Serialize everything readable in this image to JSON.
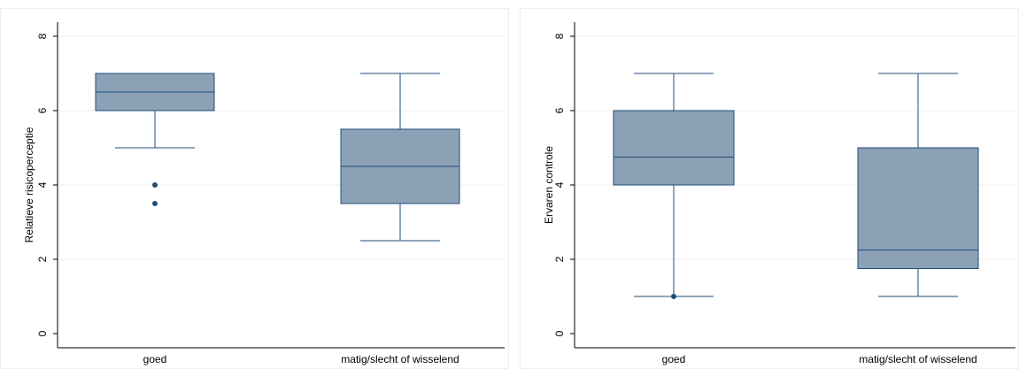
{
  "colors": {
    "box_fill": "#8ca1b6",
    "box_stroke": "#1f4e79",
    "outlier": "#1f4e79",
    "grid": "#eeeeee",
    "axis": "#000000",
    "panel_border": "#eeeeee"
  },
  "chart_data": [
    {
      "type": "boxplot",
      "title": "",
      "xlabel": "",
      "ylabel": "Relatieve risicoperceptie",
      "ylim": [
        0,
        8
      ],
      "yticks": [
        "0",
        "2",
        "4",
        "6",
        "8"
      ],
      "grid": true,
      "categories": [
        "goed",
        "matig/slecht of wisselend"
      ],
      "boxes": [
        {
          "whisker_low": 5,
          "q1": 6,
          "median": 6.5,
          "q3": 7,
          "whisker_high": 7,
          "outliers": [
            4,
            3.5
          ]
        },
        {
          "whisker_low": 2.5,
          "q1": 3.5,
          "median": 4.5,
          "q3": 5.5,
          "whisker_high": 7,
          "outliers": []
        }
      ]
    },
    {
      "type": "boxplot",
      "title": "",
      "xlabel": "",
      "ylabel": "Ervaren controle",
      "ylim": [
        0,
        8
      ],
      "yticks": [
        "0",
        "2",
        "4",
        "6",
        "8"
      ],
      "grid": true,
      "categories": [
        "goed",
        "matig/slecht of wisselend"
      ],
      "boxes": [
        {
          "whisker_low": 1,
          "q1": 4,
          "median": 4.75,
          "q3": 6,
          "whisker_high": 7,
          "outliers": [
            1
          ]
        },
        {
          "whisker_low": 1,
          "q1": 1.75,
          "median": 2.25,
          "q3": 5,
          "whisker_high": 7,
          "outliers": []
        }
      ]
    }
  ]
}
